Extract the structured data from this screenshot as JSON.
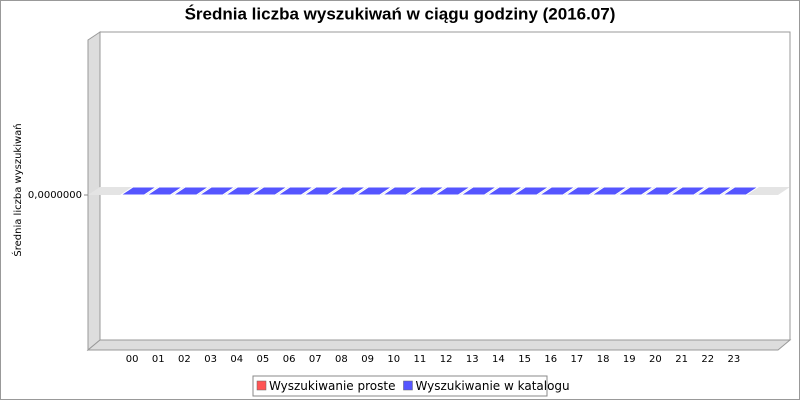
{
  "chart_data": {
    "type": "bar3d",
    "title": "Średnia liczba wyszukiwań w ciągu godziny (2016.07)",
    "y_label": "Średnia liczba wyszukiwań",
    "categories": [
      "00",
      "01",
      "02",
      "03",
      "04",
      "05",
      "06",
      "07",
      "08",
      "09",
      "10",
      "11",
      "12",
      "13",
      "14",
      "15",
      "16",
      "17",
      "18",
      "19",
      "20",
      "21",
      "22",
      "23"
    ],
    "series": [
      {
        "name": "Wyszukiwanie proste",
        "color": "#ff5555",
        "values": [
          0,
          0,
          0,
          0,
          0,
          0,
          0,
          0,
          0,
          0,
          0,
          0,
          0,
          0,
          0,
          0,
          0,
          0,
          0,
          0,
          0,
          0,
          0,
          0
        ]
      },
      {
        "name": "Wyszukiwanie w katalogu",
        "color": "#5555ff",
        "values": [
          0,
          0,
          0,
          0,
          0,
          0,
          0,
          0,
          0,
          0,
          0,
          0,
          0,
          0,
          0,
          0,
          0,
          0,
          0,
          0,
          0,
          0,
          0,
          0
        ]
      }
    ],
    "ylim": [
      -1,
      1
    ],
    "yticks": [
      {
        "value": 0,
        "label": "0,0000000"
      }
    ]
  }
}
